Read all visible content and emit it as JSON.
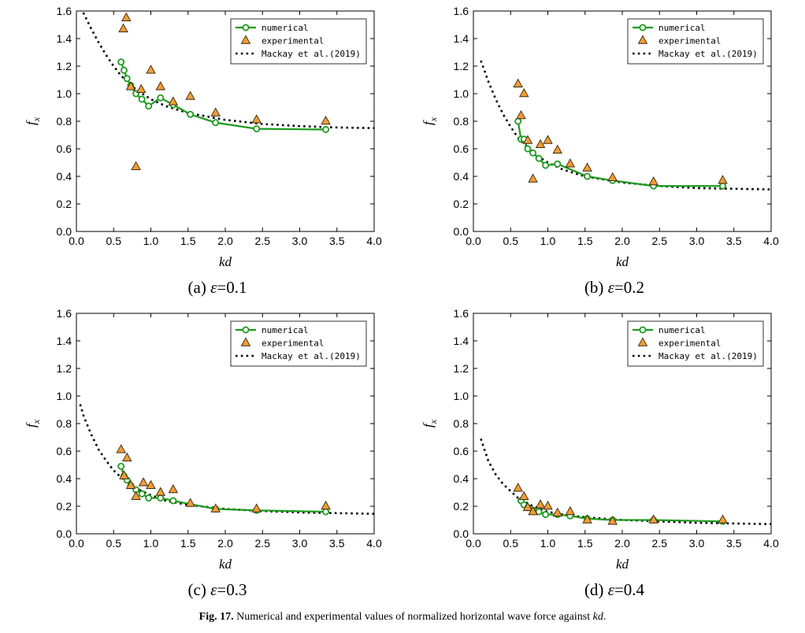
{
  "figure": {
    "caption_label": "Fig. 17.",
    "caption_text_pre": " Numerical and experimental values of normalized horizontal wave force against ",
    "caption_text_italic": "kd",
    "caption_text_post": "."
  },
  "colors": {
    "numerical": "#1e9a1e",
    "experimental_fill": "#f39c36",
    "experimental_edge": "#3a2a10",
    "mackay": "#000000"
  },
  "chart_data": [
    {
      "type": "line",
      "panel_label": "(a)",
      "epsilon_symbol": "ε",
      "epsilon_value": "=0.1",
      "xlabel": "kd",
      "ylabel_base": "f",
      "ylabel_sub": "x",
      "xlim": [
        0.0,
        4.0
      ],
      "ylim": [
        0.0,
        1.6
      ],
      "xticks": [
        "0.0",
        "0.5",
        "1.0",
        "1.5",
        "2.0",
        "2.5",
        "3.0",
        "3.5",
        "4.0"
      ],
      "yticks": [
        "0.0",
        "0.2",
        "0.4",
        "0.6",
        "0.8",
        "1.0",
        "1.2",
        "1.4",
        "1.6"
      ],
      "legend_position": "top-right",
      "series": [
        {
          "name": "numerical",
          "kind": "line-circle",
          "x": [
            0.6,
            0.64,
            0.68,
            0.73,
            0.8,
            0.88,
            0.97,
            1.13,
            1.3,
            1.53,
            1.87,
            2.42,
            3.35
          ],
          "y": [
            1.23,
            1.17,
            1.11,
            1.06,
            1.0,
            0.96,
            0.91,
            0.97,
            0.92,
            0.85,
            0.79,
            0.745,
            0.74
          ]
        },
        {
          "name": "experimental",
          "kind": "triangle",
          "x": [
            0.63,
            0.67,
            0.73,
            0.8,
            0.87,
            1.0,
            1.13,
            1.3,
            1.53,
            1.87,
            2.42,
            3.35
          ],
          "y": [
            1.47,
            1.55,
            1.05,
            0.47,
            1.03,
            1.17,
            1.05,
            0.94,
            0.98,
            0.86,
            0.81,
            0.8
          ]
        },
        {
          "name": "Mackay et al.(2019)",
          "kind": "dotted",
          "x": [
            0.05,
            0.1,
            0.2,
            0.3,
            0.4,
            0.5,
            0.6,
            0.8,
            1.0,
            1.2,
            1.5,
            2.0,
            2.5,
            3.0,
            3.5,
            4.0
          ],
          "y": [
            1.62,
            1.58,
            1.47,
            1.37,
            1.28,
            1.2,
            1.13,
            1.03,
            0.96,
            0.91,
            0.86,
            0.81,
            0.78,
            0.765,
            0.755,
            0.75
          ]
        }
      ]
    },
    {
      "type": "line",
      "panel_label": "(b)",
      "epsilon_symbol": "ε",
      "epsilon_value": "=0.2",
      "xlabel": "kd",
      "ylabel_base": "f",
      "ylabel_sub": "x",
      "xlim": [
        0.0,
        4.0
      ],
      "ylim": [
        0.0,
        1.6
      ],
      "xticks": [
        "0.0",
        "0.5",
        "1.0",
        "1.5",
        "2.0",
        "2.5",
        "3.0",
        "3.5",
        "4.0"
      ],
      "yticks": [
        "0.0",
        "0.2",
        "0.4",
        "0.6",
        "0.8",
        "1.0",
        "1.2",
        "1.4",
        "1.6"
      ],
      "legend_position": "top-right",
      "series": [
        {
          "name": "numerical",
          "kind": "line-circle",
          "x": [
            0.6,
            0.64,
            0.68,
            0.73,
            0.8,
            0.88,
            0.97,
            1.13,
            1.53,
            1.87,
            2.42,
            3.35
          ],
          "y": [
            0.8,
            0.67,
            0.67,
            0.6,
            0.57,
            0.53,
            0.48,
            0.49,
            0.4,
            0.37,
            0.33,
            0.33
          ]
        },
        {
          "name": "experimental",
          "kind": "triangle",
          "x": [
            0.6,
            0.64,
            0.68,
            0.73,
            0.8,
            0.9,
            1.0,
            1.13,
            1.3,
            1.53,
            1.87,
            2.42,
            3.35
          ],
          "y": [
            1.07,
            0.84,
            1.0,
            0.66,
            0.38,
            0.63,
            0.66,
            0.59,
            0.49,
            0.46,
            0.39,
            0.36,
            0.37
          ]
        },
        {
          "name": "Mackay et al.(2019)",
          "kind": "dotted",
          "x": [
            0.1,
            0.2,
            0.3,
            0.4,
            0.5,
            0.6,
            0.8,
            1.0,
            1.2,
            1.5,
            2.0,
            2.5,
            3.0,
            3.5,
            4.0
          ],
          "y": [
            1.24,
            1.09,
            0.96,
            0.85,
            0.76,
            0.68,
            0.57,
            0.5,
            0.45,
            0.4,
            0.355,
            0.33,
            0.315,
            0.31,
            0.305
          ]
        }
      ]
    },
    {
      "type": "line",
      "panel_label": "(c)",
      "epsilon_symbol": "ε",
      "epsilon_value": "=0.3",
      "xlabel": "kd",
      "ylabel_base": "f",
      "ylabel_sub": "x",
      "xlim": [
        0.0,
        4.0
      ],
      "ylim": [
        0.0,
        1.6
      ],
      "xticks": [
        "0.0",
        "0.5",
        "1.0",
        "1.5",
        "2.0",
        "2.5",
        "3.0",
        "3.5",
        "4.0"
      ],
      "yticks": [
        "0.0",
        "0.2",
        "0.4",
        "0.6",
        "0.8",
        "1.0",
        "1.2",
        "1.4",
        "1.6"
      ],
      "legend_position": "top-right",
      "series": [
        {
          "name": "numerical",
          "kind": "line-circle",
          "x": [
            0.6,
            0.64,
            0.68,
            0.73,
            0.8,
            0.88,
            0.97,
            1.13,
            1.3,
            1.87,
            2.42,
            3.35
          ],
          "y": [
            0.49,
            0.42,
            0.39,
            0.35,
            0.32,
            0.29,
            0.26,
            0.26,
            0.24,
            0.18,
            0.17,
            0.16
          ]
        },
        {
          "name": "experimental",
          "kind": "triangle",
          "x": [
            0.6,
            0.64,
            0.68,
            0.73,
            0.8,
            0.9,
            1.0,
            1.13,
            1.3,
            1.53,
            1.87,
            2.42,
            3.35
          ],
          "y": [
            0.61,
            0.42,
            0.55,
            0.35,
            0.27,
            0.37,
            0.35,
            0.3,
            0.32,
            0.22,
            0.18,
            0.18,
            0.2
          ]
        },
        {
          "name": "Mackay et al.(2019)",
          "kind": "dotted",
          "x": [
            0.05,
            0.1,
            0.2,
            0.3,
            0.4,
            0.5,
            0.6,
            0.8,
            1.0,
            1.2,
            1.5,
            2.0,
            2.5,
            3.0,
            3.5,
            4.0
          ],
          "y": [
            0.94,
            0.85,
            0.72,
            0.61,
            0.53,
            0.46,
            0.41,
            0.33,
            0.28,
            0.24,
            0.21,
            0.18,
            0.165,
            0.155,
            0.15,
            0.145
          ]
        }
      ]
    },
    {
      "type": "line",
      "panel_label": "(d)",
      "epsilon_symbol": "ε",
      "epsilon_value": "=0.4",
      "xlabel": "kd",
      "ylabel_base": "f",
      "ylabel_sub": "x",
      "xlim": [
        0.0,
        4.0
      ],
      "ylim": [
        0.0,
        1.6
      ],
      "xticks": [
        "0.0",
        "0.5",
        "1.0",
        "1.5",
        "2.0",
        "2.5",
        "3.0",
        "3.5",
        "4.0"
      ],
      "yticks": [
        "0.0",
        "0.2",
        "0.4",
        "0.6",
        "0.8",
        "1.0",
        "1.2",
        "1.4",
        "1.6"
      ],
      "legend_position": "top-right",
      "series": [
        {
          "name": "numerical",
          "kind": "line-circle",
          "x": [
            0.64,
            0.68,
            0.73,
            0.8,
            0.88,
            0.97,
            1.13,
            1.3,
            1.53,
            1.87,
            2.42,
            3.35
          ],
          "y": [
            0.24,
            0.21,
            0.19,
            0.17,
            0.16,
            0.14,
            0.14,
            0.13,
            0.11,
            0.1,
            0.1,
            0.09
          ]
        },
        {
          "name": "experimental",
          "kind": "triangle",
          "x": [
            0.6,
            0.68,
            0.73,
            0.8,
            0.9,
            1.0,
            1.13,
            1.3,
            1.53,
            1.87,
            2.42,
            3.35
          ],
          "y": [
            0.33,
            0.27,
            0.19,
            0.16,
            0.21,
            0.2,
            0.15,
            0.16,
            0.1,
            0.09,
            0.1,
            0.1
          ]
        },
        {
          "name": "Mackay et al.(2019)",
          "kind": "dotted",
          "x": [
            0.1,
            0.2,
            0.3,
            0.4,
            0.5,
            0.6,
            0.8,
            1.0,
            1.2,
            1.5,
            2.0,
            2.5,
            3.0,
            3.5,
            4.0
          ],
          "y": [
            0.69,
            0.53,
            0.43,
            0.36,
            0.31,
            0.26,
            0.2,
            0.16,
            0.14,
            0.12,
            0.1,
            0.09,
            0.08,
            0.075,
            0.07
          ]
        }
      ]
    }
  ]
}
